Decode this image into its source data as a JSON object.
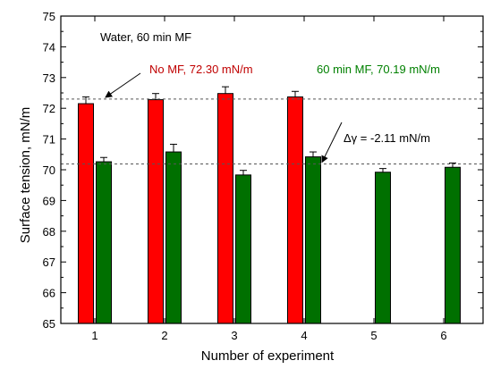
{
  "chart_data": {
    "type": "bar",
    "xlabel": "Number of experiment",
    "ylabel": "Surface tension, mN/m",
    "categories": [
      "1",
      "2",
      "3",
      "4",
      "5",
      "6"
    ],
    "ylim": [
      65,
      75
    ],
    "yticks": [
      "65",
      "66",
      "67",
      "68",
      "69",
      "70",
      "71",
      "72",
      "73",
      "74",
      "75"
    ],
    "grid": false,
    "series": [
      {
        "name": "No MF",
        "color": "#ff0000",
        "values": [
          72.15,
          72.28,
          72.48,
          72.37,
          null,
          null
        ],
        "errors": [
          0.22,
          0.2,
          0.22,
          0.18,
          null,
          null
        ]
      },
      {
        "name": "60 min MF",
        "color": "#007000",
        "values": [
          70.26,
          70.58,
          69.83,
          70.42,
          69.92,
          70.08
        ],
        "errors": [
          0.14,
          0.25,
          0.15,
          0.16,
          0.12,
          0.14
        ]
      }
    ],
    "reference_lines": [
      {
        "value": 72.3,
        "style": "dashed"
      },
      {
        "value": 70.19,
        "style": "dashed"
      }
    ],
    "annotations": {
      "title": "Water, 60 min MF",
      "no_mf": "No MF, 72.30 mN/m",
      "mf": "60 min MF, 70.19 mN/m",
      "delta": "Δγ = -2.11 mN/m"
    }
  }
}
